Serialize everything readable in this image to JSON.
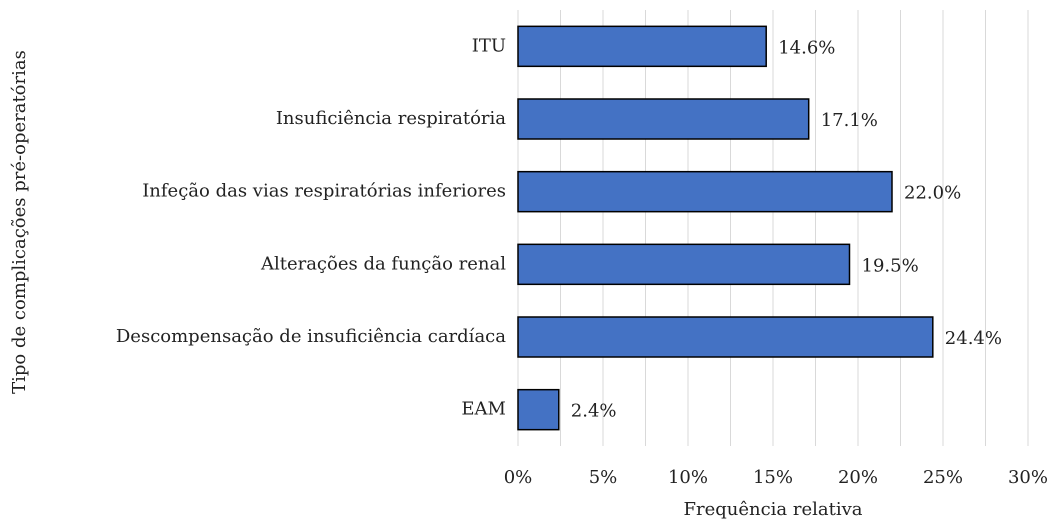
{
  "chart_data": {
    "type": "barh",
    "categories": [
      "ITU",
      "Insuficiência respiratória",
      "Infeção das vias respiratórias inferiores",
      "Alterações da função renal",
      "Descompensação de insuficiência cardíaca",
      "EAM"
    ],
    "values": [
      14.6,
      17.1,
      22.0,
      19.5,
      24.4,
      2.4
    ],
    "value_labels": [
      "14.6%",
      "17.1%",
      "22.0%",
      "19.5%",
      "24.4%",
      "2.4%"
    ],
    "color": "#4472c4",
    "xlim": [
      0,
      30
    ],
    "xticks": [
      {
        "value": 0,
        "label": "0%"
      },
      {
        "value": 5,
        "label": "5%"
      },
      {
        "value": 10,
        "label": "10%"
      },
      {
        "value": 15,
        "label": "15%"
      },
      {
        "value": 20,
        "label": "20%"
      },
      {
        "value": 25,
        "label": "25%"
      },
      {
        "value": 30,
        "label": "30%"
      }
    ],
    "minor_xticks": [
      2.5,
      7.5,
      12.5,
      17.5,
      22.5,
      27.5
    ],
    "grid": true,
    "xlabel": "Frequência relativa",
    "ylabel": "Tipo de complicações pré-operatórias"
  }
}
